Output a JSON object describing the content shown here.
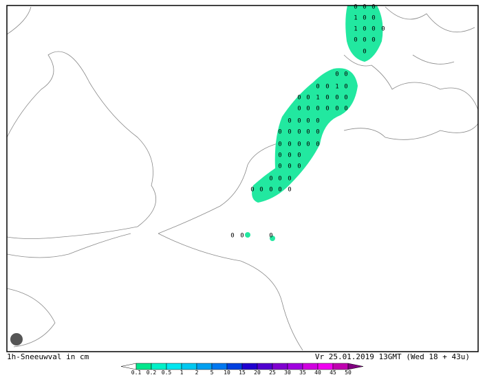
{
  "title": "1h-Sneeuwval in cm",
  "valid_time": "Vr 25.01.2019 13GMT (Wed 18 + 43u)",
  "legend": {
    "labels": [
      "0.1",
      "0.2",
      "0.5",
      "1",
      "2",
      "5",
      "10",
      "15",
      "20",
      "25",
      "30",
      "35",
      "40",
      "45",
      "50"
    ],
    "colors": [
      "#ffffff",
      "#00e68c",
      "#00f0c8",
      "#00e6f0",
      "#00c8f0",
      "#00a0f0",
      "#0078f0",
      "#0040e0",
      "#2000d0",
      "#5000d0",
      "#8000d0",
      "#a000e0",
      "#d000e0",
      "#f000f0",
      "#c000b0",
      "#800080"
    ]
  },
  "grid_labels": [
    0,
    0,
    0,
    1,
    0,
    0,
    1,
    0,
    0,
    0,
    0,
    0,
    0,
    0,
    0,
    0,
    0,
    0,
    1,
    0,
    0,
    0,
    1,
    0,
    0,
    0,
    0,
    0,
    0,
    0,
    0,
    0,
    0,
    0,
    0,
    0,
    0,
    0,
    0,
    0,
    0,
    0,
    0,
    0,
    0,
    0,
    0,
    0,
    0,
    0,
    0,
    0,
    0,
    0,
    0,
    0,
    0,
    0,
    0,
    0,
    0,
    0,
    0
  ]
}
